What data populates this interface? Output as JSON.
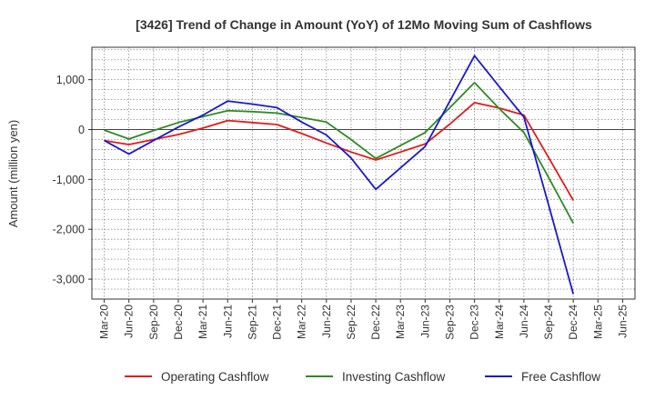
{
  "chart_data": {
    "type": "line",
    "title": "[3426]  Trend of Change in Amount (YoY) of 12Mo Moving Sum of Cashflows",
    "xlabel": "",
    "ylabel": "Amount (million yen)",
    "ylim": [
      -3400,
      1650
    ],
    "yticks": [
      1000,
      0,
      -1000,
      -2000,
      -3000
    ],
    "ytick_labels": [
      "1,000",
      "0",
      "-1,000",
      "-2,000",
      "-3,000"
    ],
    "categories": [
      "Mar-20",
      "Jun-20",
      "Sep-20",
      "Dec-20",
      "Mar-21",
      "Jun-21",
      "Sep-21",
      "Dec-21",
      "Mar-22",
      "Jun-22",
      "Sep-22",
      "Dec-22",
      "Mar-23",
      "Jun-23",
      "Sep-23",
      "Dec-23",
      "Mar-24",
      "Jun-24",
      "Sep-24",
      "Dec-24",
      "Mar-25",
      "Jun-25"
    ],
    "grid": true,
    "legend_position": "bottom",
    "series": [
      {
        "name": "Operating Cashflow",
        "color": "#e41a1c",
        "values": [
          -220,
          -300,
          -200,
          -100,
          30,
          180,
          140,
          100,
          -80,
          -270,
          -450,
          -610,
          -450,
          -290,
          110,
          540,
          430,
          290,
          -560,
          -1420,
          null,
          null
        ]
      },
      {
        "name": "Investing Cashflow",
        "color": "#2e8b22",
        "values": [
          -10,
          -190,
          -20,
          140,
          260,
          380,
          360,
          330,
          240,
          150,
          -200,
          -580,
          -320,
          -60,
          440,
          940,
          420,
          -60,
          -960,
          -1880,
          null,
          null
        ]
      },
      {
        "name": "Free Cashflow",
        "color": "#1a1acc",
        "values": [
          -220,
          -490,
          -220,
          50,
          290,
          570,
          510,
          440,
          150,
          -110,
          -570,
          -1200,
          -770,
          -340,
          570,
          1480,
          860,
          250,
          -1510,
          -3300,
          null,
          null
        ]
      }
    ]
  }
}
